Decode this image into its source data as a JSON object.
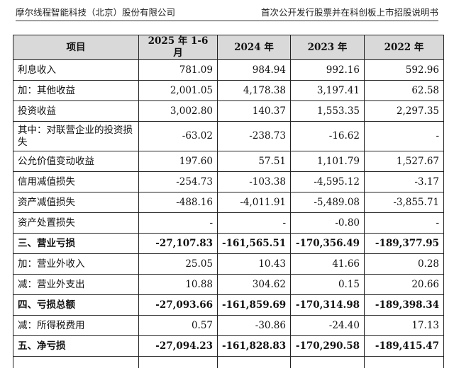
{
  "header": {
    "company": "摩尔线程智能科技（北京）股份有限公司",
    "document": "首次公开发行股票并在科创板上市招股说明书"
  },
  "table": {
    "columns": [
      "项目",
      "2025 年 1-6 月",
      "2024 年",
      "2023 年",
      "2022 年"
    ],
    "rows": [
      {
        "label": "利息收入",
        "values": [
          "781.09",
          "984.94",
          "992.16",
          "592.96"
        ]
      },
      {
        "label": "加：其他收益",
        "values": [
          "2,001.05",
          "4,178.38",
          "3,197.41",
          "62.58"
        ]
      },
      {
        "label": "投资收益",
        "values": [
          "3,002.80",
          "140.37",
          "1,553.35",
          "2,297.35"
        ]
      },
      {
        "label": "其中：对联营企业的投资损失",
        "values": [
          "-63.02",
          "-238.73",
          "-16.62",
          "-"
        ]
      },
      {
        "label": "公允价值变动收益",
        "values": [
          "197.60",
          "57.51",
          "1,101.79",
          "1,527.67"
        ]
      },
      {
        "label": "信用减值损失",
        "values": [
          "-254.73",
          "-103.38",
          "-4,595.12",
          "-3.17"
        ]
      },
      {
        "label": "资产减值损失",
        "values": [
          "-488.16",
          "-4,011.91",
          "-5,489.08",
          "-3,855.71"
        ]
      },
      {
        "label": "资产处置损失",
        "values": [
          "-",
          "-",
          "-0.80",
          "-"
        ]
      },
      {
        "label": "三、营业亏损",
        "values": [
          "-27,107.83",
          "-161,565.51",
          "-170,356.49",
          "-189,377.95"
        ]
      },
      {
        "label": "加：营业外收入",
        "values": [
          "25.05",
          "10.43",
          "41.66",
          "0.28"
        ]
      },
      {
        "label": "减：营业外支出",
        "values": [
          "10.88",
          "304.62",
          "0.15",
          "20.66"
        ]
      },
      {
        "label": "四、亏损总额",
        "values": [
          "-27,093.66",
          "-161,859.69",
          "-170,314.98",
          "-189,398.34"
        ]
      },
      {
        "label": "减：所得税费用",
        "values": [
          "0.57",
          "-30.86",
          "-24.40",
          "17.13"
        ]
      },
      {
        "label": "五、净亏损",
        "values": [
          "-27,094.23",
          "-161,828.83",
          "-170,290.58",
          "-189,415.47"
        ]
      }
    ]
  }
}
